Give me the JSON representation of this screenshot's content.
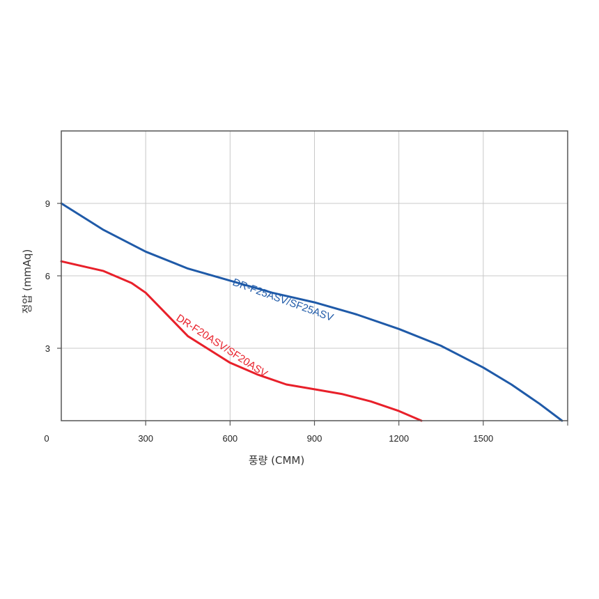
{
  "chart_data": {
    "type": "line",
    "xlabel": "풍량 (CMM)",
    "ylabel": "정압 (mmAq)",
    "origin_label": "0",
    "xlim": [
      0,
      1800
    ],
    "ylim": [
      0,
      12
    ],
    "x_ticks": [
      300,
      600,
      900,
      1200,
      1500
    ],
    "x_tick_labels": [
      "300",
      "600",
      "900",
      "1200",
      "1500"
    ],
    "x_grid": [
      300,
      600,
      900,
      1200,
      1500,
      1800
    ],
    "y_ticks": [
      3,
      6,
      9
    ],
    "y_tick_labels": [
      "3",
      "6",
      "9"
    ],
    "grid": true,
    "legend": "inline",
    "colors": {
      "series_blue": "#1f5aa8",
      "series_red": "#e8202a",
      "grid": "#c8c8c8",
      "frame": "#555555"
    },
    "series": [
      {
        "name": "DR-F25ASV/SF25ASV",
        "color": "#1f5aa8",
        "x": [
          0,
          150,
          300,
          450,
          600,
          750,
          900,
          1050,
          1200,
          1350,
          1500,
          1600,
          1700,
          1780
        ],
        "y": [
          9.0,
          7.9,
          7.0,
          6.3,
          5.8,
          5.3,
          4.9,
          4.4,
          3.8,
          3.1,
          2.2,
          1.5,
          0.7,
          0.0
        ]
      },
      {
        "name": "DR-F20ASV/SF20ASV",
        "color": "#e8202a",
        "x": [
          0,
          150,
          250,
          300,
          350,
          450,
          600,
          700,
          800,
          900,
          1000,
          1100,
          1200,
          1280
        ],
        "y": [
          6.6,
          6.2,
          5.7,
          5.3,
          4.7,
          3.5,
          2.4,
          1.9,
          1.5,
          1.3,
          1.1,
          0.8,
          0.4,
          0.0
        ]
      }
    ]
  }
}
